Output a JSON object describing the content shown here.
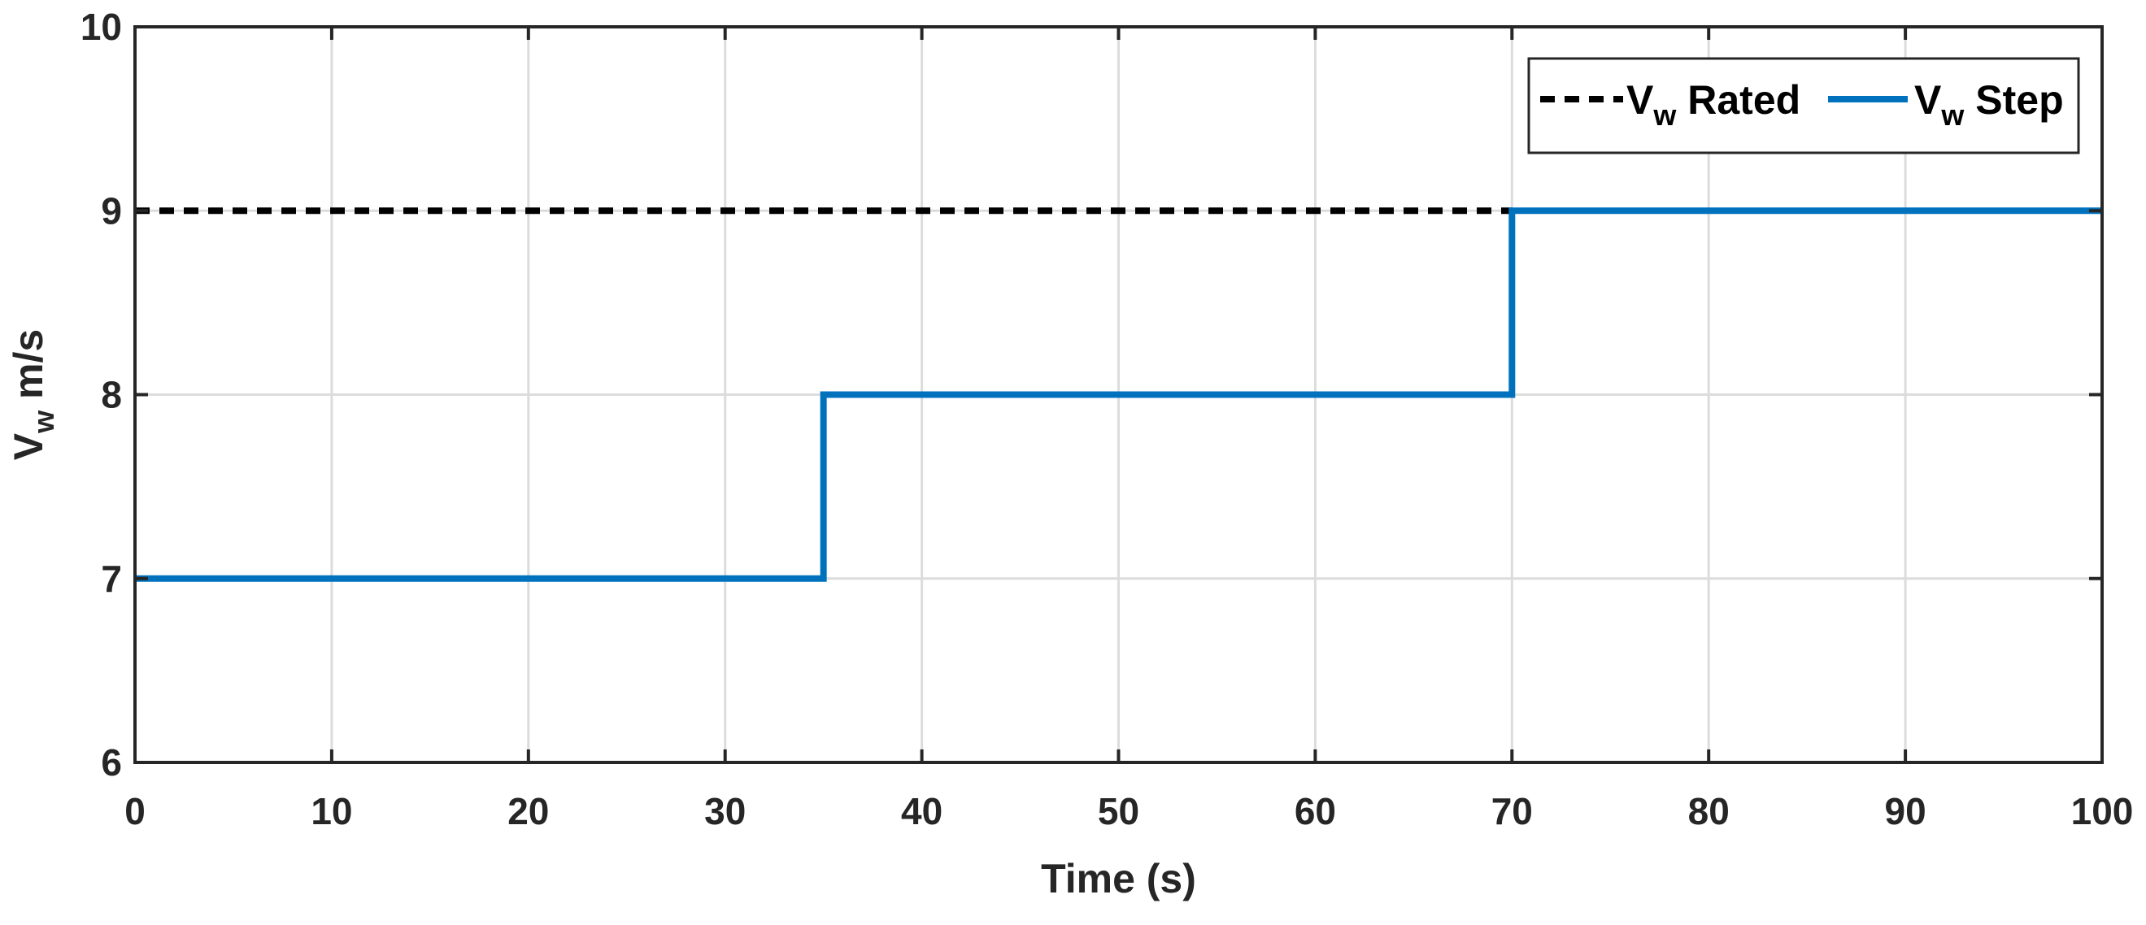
{
  "chart_data": {
    "type": "line",
    "title": "",
    "xlabel": "Time (s)",
    "ylabel": {
      "main": "V",
      "sub": "w",
      "unit": " m/s"
    },
    "xlim": [
      0,
      100
    ],
    "ylim": [
      6,
      10
    ],
    "xticks": [
      0,
      10,
      20,
      30,
      40,
      50,
      60,
      70,
      80,
      90,
      100
    ],
    "yticks": [
      6,
      7,
      8,
      9,
      10
    ],
    "grid": true,
    "legend_position": "top-right",
    "series": [
      {
        "name": {
          "main": "V",
          "sub": "w",
          "rest": " Rated"
        },
        "style": "dashed",
        "color": "#000000",
        "x": [
          0,
          70
        ],
        "y": [
          9,
          9
        ]
      },
      {
        "name": {
          "main": "V",
          "sub": "w",
          "rest": " Step"
        },
        "style": "solid",
        "color": "#0072BD",
        "x": [
          0,
          35,
          35,
          70,
          70,
          100
        ],
        "y": [
          7,
          7,
          8,
          8,
          9,
          9
        ]
      }
    ]
  }
}
